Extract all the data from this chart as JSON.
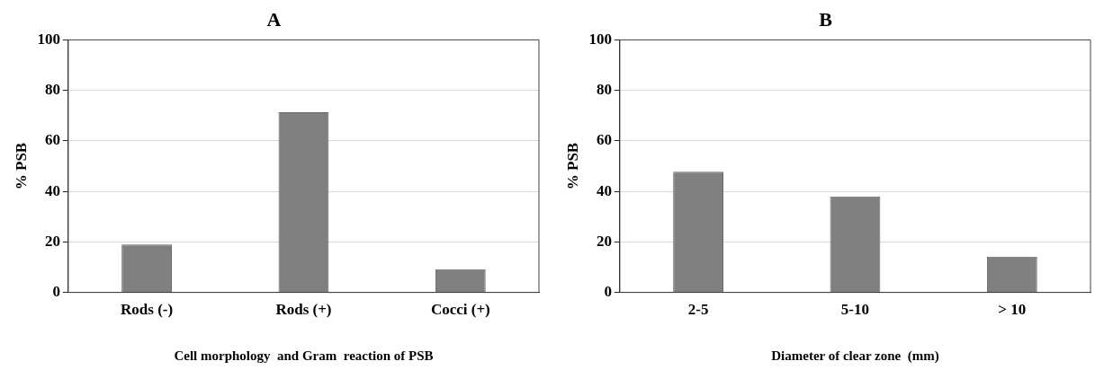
{
  "chart_data": [
    {
      "type": "bar",
      "title": "A",
      "categories": [
        "Rods (-)",
        "Rods (+)",
        "Cocci (+)"
      ],
      "values": [
        19,
        71.3,
        9.2
      ],
      "color": "#808080",
      "xlabel": "Cell morphology  and Gram  reaction of PSB",
      "ylabel": "% PSB",
      "ylim": [
        0,
        100
      ],
      "yticks": [
        0,
        20,
        40,
        60,
        80,
        100
      ],
      "grid": "y"
    },
    {
      "type": "bar",
      "title": "B",
      "categories": [
        "2-5",
        "5-10",
        "> 10"
      ],
      "values": [
        47.8,
        38,
        14.2
      ],
      "color": "#808080",
      "xlabel": "Diameter of clear zone  (mm)",
      "ylabel": "% PSB",
      "ylim": [
        0,
        100
      ],
      "yticks": [
        0,
        20,
        40,
        60,
        80,
        100
      ],
      "grid": "y"
    }
  ]
}
